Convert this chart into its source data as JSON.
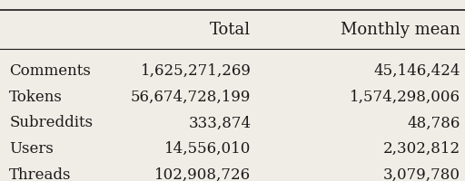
{
  "rows": [
    [
      "Comments",
      "1,625,271,269",
      "45,146,424"
    ],
    [
      "Tokens",
      "56,674,728,199",
      "1,574,298,006"
    ],
    [
      "Subreddits",
      "333,874",
      "48,786"
    ],
    [
      "Users",
      "14,556,010",
      "2,302,812"
    ],
    [
      "Threads",
      "102,908,726",
      "3,079,780"
    ]
  ],
  "col_headers": [
    "",
    "Total",
    "Monthly mean"
  ],
  "bg_color": "#f0ede6",
  "text_color": "#1a1a1a",
  "font_family": "serif",
  "header_fontsize": 13,
  "cell_fontsize": 12,
  "fig_width": 5.12,
  "fig_height": 2.0
}
